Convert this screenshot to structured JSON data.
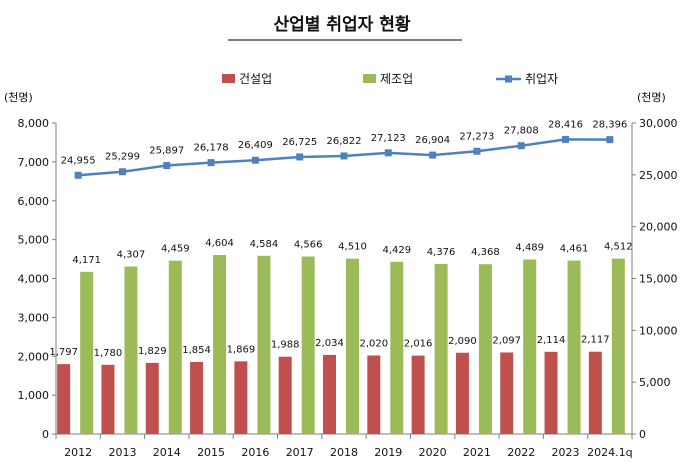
{
  "chart_data": {
    "type": "bar",
    "title": "산업별 취업자 현황",
    "y_left_unit": "(천명)",
    "y_right_unit": "(천명)",
    "categories": [
      "2012",
      "2013",
      "2014",
      "2015",
      "2016",
      "2017",
      "2018",
      "2019",
      "2020",
      "2021",
      "2022",
      "2023",
      "2024.1q"
    ],
    "y_left": {
      "ylim": [
        0,
        8000
      ],
      "ticks": [
        0,
        1000,
        2000,
        3000,
        4000,
        5000,
        6000,
        7000,
        8000
      ]
    },
    "y_right": {
      "ylim": [
        0,
        30000
      ],
      "ticks": [
        0,
        5000,
        10000,
        15000,
        20000,
        25000,
        30000
      ]
    },
    "grid": false,
    "legend_position": "top",
    "series": [
      {
        "name": "건설업",
        "type": "bar",
        "axis": "left",
        "color": "#c0504d",
        "values": [
          1797,
          1780,
          1829,
          1854,
          1869,
          1988,
          2034,
          2020,
          2016,
          2090,
          2097,
          2114,
          2117
        ]
      },
      {
        "name": "제조업",
        "type": "bar",
        "axis": "left",
        "color": "#9bbb59",
        "values": [
          4171,
          4307,
          4459,
          4604,
          4584,
          4566,
          4510,
          4429,
          4376,
          4368,
          4489,
          4461,
          4512
        ]
      },
      {
        "name": "취업자",
        "type": "line",
        "axis": "right",
        "color": "#4f81bd",
        "values": [
          24955,
          25299,
          25897,
          26178,
          26409,
          26725,
          26822,
          27123,
          26904,
          27273,
          27808,
          28416,
          28396
        ]
      }
    ]
  }
}
